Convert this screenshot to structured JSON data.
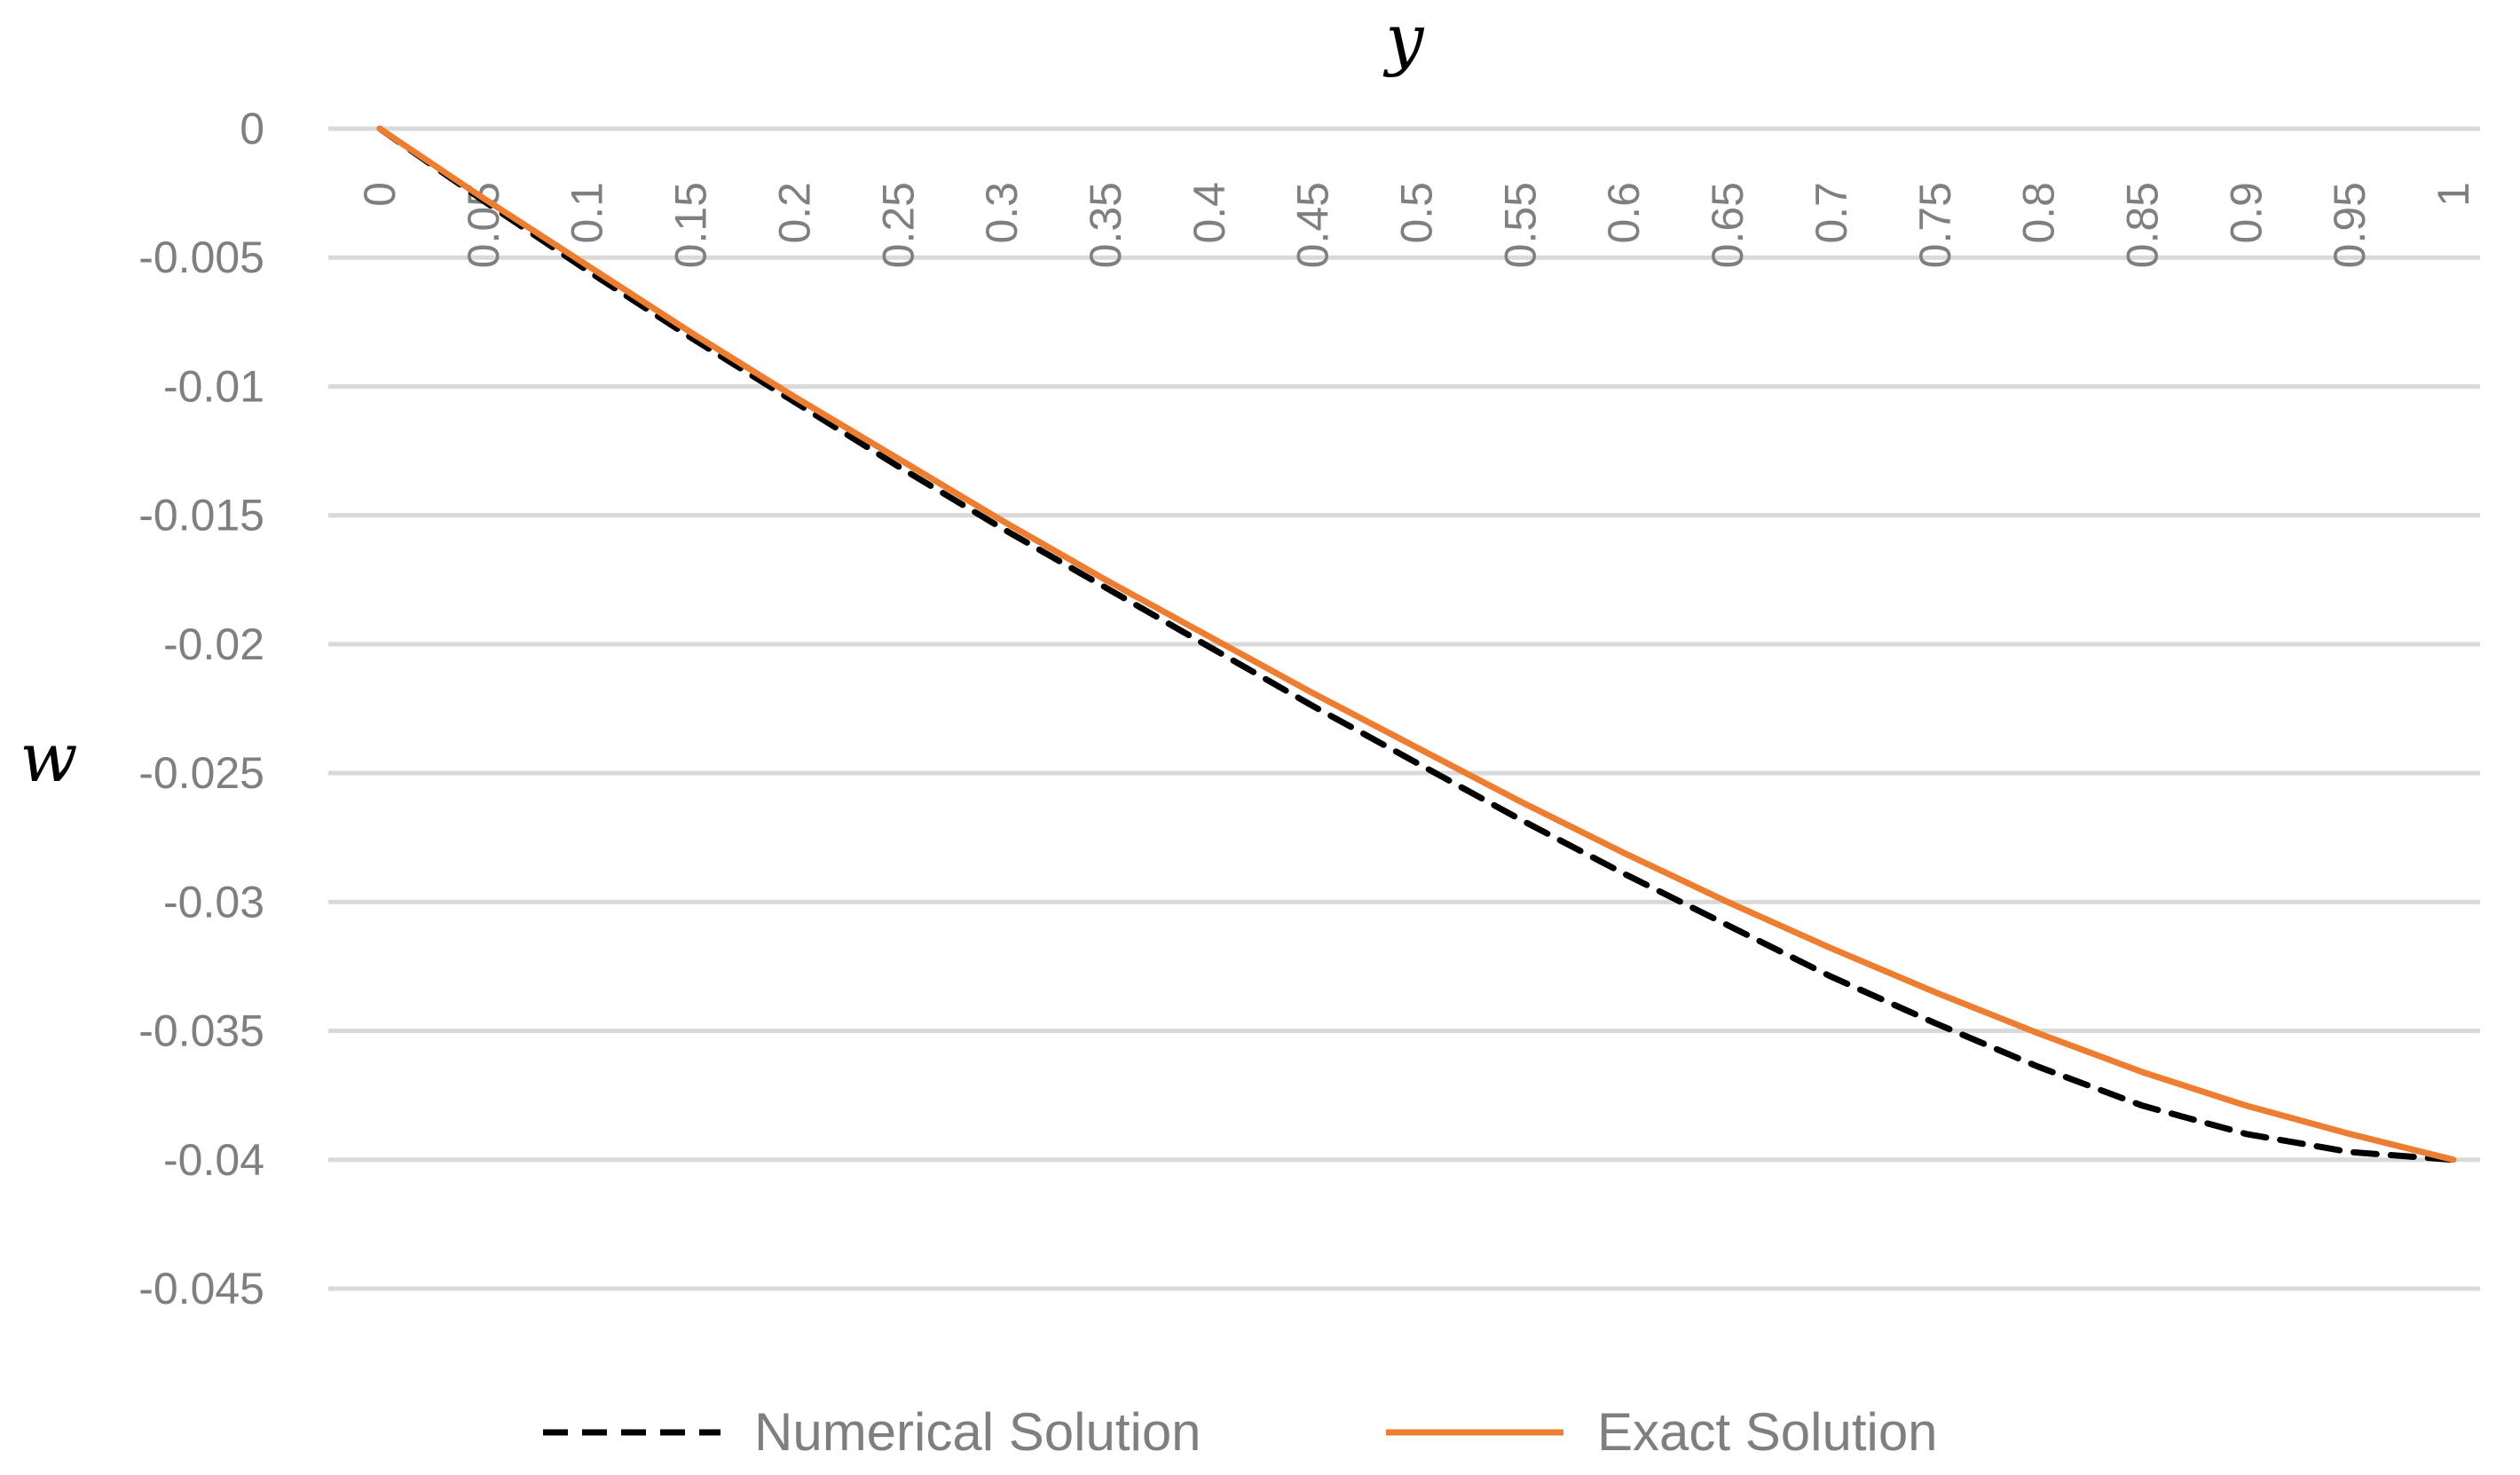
{
  "chart_data": {
    "type": "line",
    "xlabel": "y",
    "ylabel": "w",
    "categories": [
      "0",
      "0.05",
      "0.1",
      "0.15",
      "0.2",
      "0.25",
      "0.3",
      "0.35",
      "0.4",
      "0.45",
      "0.5",
      "0.55",
      "0.6",
      "0.65",
      "0.7",
      "0.75",
      "0.8",
      "0.85",
      "0.9",
      "0.95",
      "1"
    ],
    "x": [
      0,
      0.05,
      0.1,
      0.15,
      0.2,
      0.25,
      0.3,
      0.35,
      0.4,
      0.45,
      0.5,
      0.55,
      0.6,
      0.65,
      0.7,
      0.75,
      0.8,
      0.85,
      0.9,
      0.95,
      1
    ],
    "y_ticks": [
      "0",
      "-0.005",
      "-0.01",
      "-0.015",
      "-0.02",
      "-0.025",
      "-0.03",
      "-0.035",
      "-0.04",
      "-0.045"
    ],
    "ylim": [
      -0.045,
      0
    ],
    "x_axis_position": "top",
    "grid": true,
    "legend_position": "bottom",
    "series": [
      {
        "name": "Numerical Solution",
        "color": "#000000",
        "style": "dashed",
        "values": [
          0,
          -0.0028,
          -0.0055,
          -0.0081,
          -0.0106,
          -0.0131,
          -0.0155,
          -0.0178,
          -0.0201,
          -0.0224,
          -0.0246,
          -0.0268,
          -0.0289,
          -0.0309,
          -0.0329,
          -0.0347,
          -0.0364,
          -0.0379,
          -0.039,
          -0.0397,
          -0.04
        ]
      },
      {
        "name": "Exact Solution",
        "color": "#ed7d31",
        "style": "solid",
        "values": [
          0,
          -0.0027,
          -0.0053,
          -0.0079,
          -0.0104,
          -0.0128,
          -0.0152,
          -0.0175,
          -0.0197,
          -0.0219,
          -0.024,
          -0.0261,
          -0.0281,
          -0.03,
          -0.0318,
          -0.0335,
          -0.0351,
          -0.0366,
          -0.0379,
          -0.039,
          -0.04
        ]
      }
    ]
  }
}
